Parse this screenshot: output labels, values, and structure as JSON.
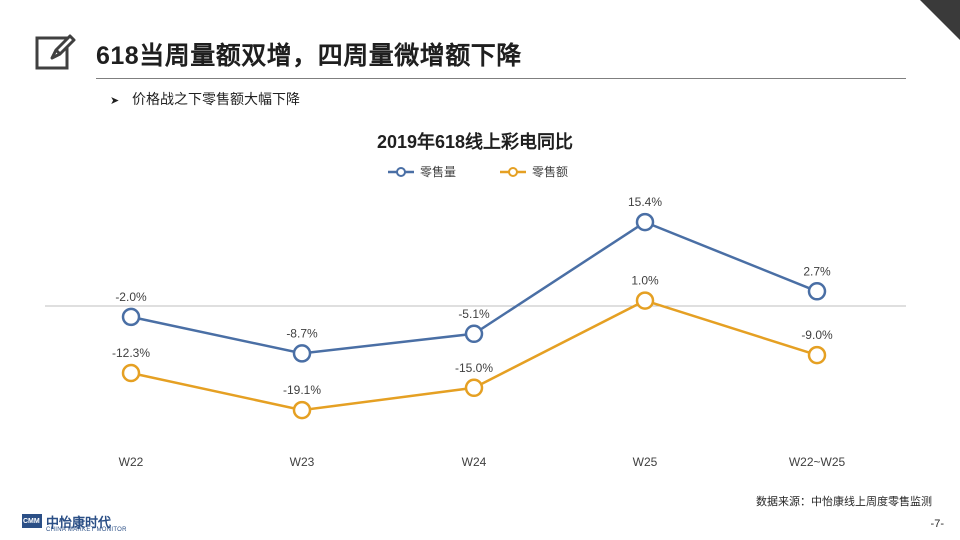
{
  "page": {
    "title": "618当周量额双增，四周量微增额下降",
    "bullet": "价格战之下零售额大幅下降",
    "source": "数据来源：中怡康线上周度零售监测",
    "page_number": "-7-",
    "logo": {
      "badge": "CMM",
      "name": "中怡康时代",
      "sub": "CHINA MARKET MONITOR"
    }
  },
  "chart_data": {
    "type": "line",
    "title": "2019年618线上彩电同比",
    "categories": [
      "W22",
      "W23",
      "W24",
      "W25",
      "W22~W25"
    ],
    "series": [
      {
        "name": "零售量",
        "color": "#4a6fa5",
        "values": [
          -2.0,
          -8.7,
          -5.1,
          15.4,
          2.7
        ],
        "labels": [
          "-2.0%",
          "-8.7%",
          "-5.1%",
          "15.4%",
          "2.7%"
        ]
      },
      {
        "name": "零售额",
        "color": "#e5a023",
        "values": [
          -12.3,
          -19.1,
          -15.0,
          1.0,
          -9.0
        ],
        "labels": [
          "-12.3%",
          "-19.1%",
          "-15.0%",
          "1.0%",
          "-9.0%"
        ]
      }
    ],
    "ylim": [
      -28,
      19
    ],
    "zero_line": true,
    "legend": "top-center",
    "grid": false
  }
}
